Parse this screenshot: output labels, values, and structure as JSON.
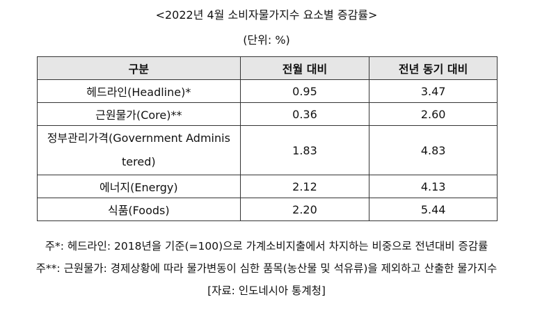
{
  "title": "<2022년 4월 소비자물가지수 요소별 증감률>",
  "unit": "(단위: %)",
  "table": {
    "headers": [
      "구분",
      "전월 대비",
      "전년 동기 대비"
    ],
    "rows": [
      {
        "name": "헤드라인(Headline)*",
        "mom": "0.95",
        "yoy": "3.47"
      },
      {
        "name": "근원물가(Core)**",
        "mom": "0.36",
        "yoy": "2.60"
      },
      {
        "name": "정부관리가격(Government Administered)",
        "name_line1": "정부관리가격(Government Adminis",
        "name_line2": "tered)",
        "mom": "1.83",
        "yoy": "4.83"
      },
      {
        "name": "에너지(Energy)",
        "mom": "2.12",
        "yoy": "4.13"
      },
      {
        "name": "식품(Foods)",
        "mom": "2.20",
        "yoy": "5.44"
      }
    ]
  },
  "notes": {
    "note1": "주*: 헤드라인: 2018년을 기준(=100)으로 가계소비지출에서 차지하는 비중으로 전년대비 증감률",
    "note2": "주**: 근원물가: 경제상황에 따라 물가변동이 심한 품목(농산물 및 석유류)을 제외하고 산출한 물가지수",
    "source": "[자료: 인도네시아 통계청]"
  }
}
